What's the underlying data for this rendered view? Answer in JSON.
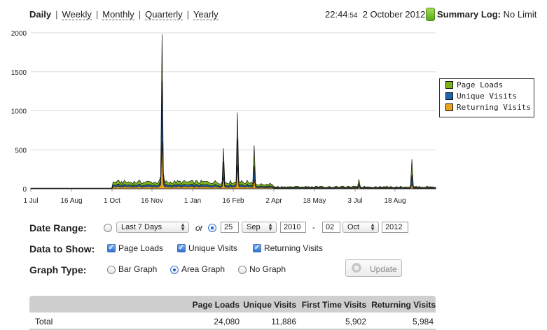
{
  "nav": {
    "current": "Daily",
    "links": [
      "Weekly",
      "Monthly",
      "Quarterly",
      "Yearly"
    ],
    "separator": "|"
  },
  "header": {
    "time": "22:44",
    "seconds": ":54",
    "date": "2 October 2012",
    "summary_label": "Summary Log:",
    "summary_value": "No Limit"
  },
  "chart_data": {
    "type": "area",
    "y_ticks": [
      "2000",
      "1500",
      "1000",
      "500",
      "0"
    ],
    "ylim": [
      0,
      2000
    ],
    "x_ticks": [
      "1 Jul",
      "16 Aug",
      "1 Oct",
      "16 Nov",
      "1 Jan",
      "16 Feb",
      "2 Apr",
      "18 May",
      "3 Jul",
      "18 Aug"
    ],
    "grid": true,
    "legend_position": "right",
    "series": [
      {
        "name": "Page Loads",
        "color": "#7ab317"
      },
      {
        "name": "Unique Visits",
        "color": "#1f63ad"
      },
      {
        "name": "Returning Visits",
        "color": "#e8a21f"
      }
    ],
    "spikes": [
      {
        "x_label_near": "16 Nov",
        "page_loads": 1980,
        "unique_visits": 1380,
        "returning_visits": 600
      },
      {
        "x_label_near": "16 Feb",
        "page_loads": 980,
        "unique_visits": 640,
        "returning_visits": 300
      },
      {
        "x_label_near": "16 Feb",
        "page_loads": 560,
        "unique_visits": 300,
        "returning_visits": 120
      },
      {
        "x_label_near": "18 Aug",
        "page_loads": 380,
        "unique_visits": 180,
        "returning_visits": 60
      }
    ]
  },
  "form": {
    "date_range_label": "Date Range:",
    "preset": "Last 7 Days",
    "or": "or",
    "from_day": "25",
    "from_month": "Sep",
    "from_year": "2010",
    "dash": "-",
    "to_day": "02",
    "to_month": "Oct",
    "to_year": "2012",
    "data_label": "Data to Show:",
    "data_options": [
      "Page Loads",
      "Unique Visits",
      "Returning Visits"
    ],
    "graph_label": "Graph Type:",
    "graph_options": [
      "Bar Graph",
      "Area Graph",
      "No Graph"
    ],
    "graph_selected": "Area Graph",
    "update_label": "Update"
  },
  "table": {
    "headers": [
      "Page Loads",
      "Unique Visits",
      "First Time Visits",
      "Returning Visits"
    ],
    "rows": [
      {
        "label": "Total",
        "values": [
          "24,080",
          "11,886",
          "5,902",
          "5,984"
        ]
      }
    ]
  }
}
